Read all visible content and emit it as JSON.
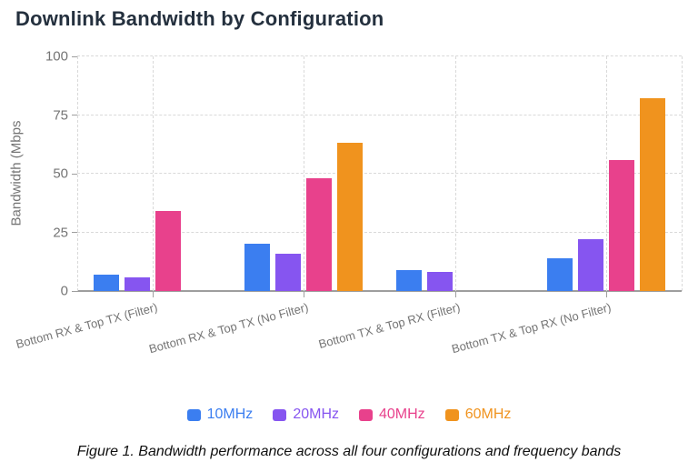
{
  "page": {
    "title": "Downlink Bandwidth by Configuration",
    "caption": "Figure 1. Bandwidth performance across all four configurations and frequency bands"
  },
  "chart_data": {
    "type": "bar",
    "title": "Downlink Bandwidth by Configuration",
    "xlabel": "",
    "ylabel": "Bandwidth (Mbps",
    "ylim": [
      0,
      100
    ],
    "yticks": [
      0,
      25,
      50,
      75,
      100
    ],
    "grid": "dashed horizontal gridlines at yticks, dashed vertical lines at category centers and plot left/right edges",
    "legend_position": "bottom center",
    "categories": [
      "Bottom RX & Top TX (Filter)",
      "Bottom RX & Top TX (No Filter)",
      "Bottom TX & Top RX (Filter)",
      "Bottom TX & Top RX (No Filter)"
    ],
    "series": [
      {
        "name": "10MHz",
        "color": "#3b7ef0",
        "values": [
          7,
          20,
          9,
          14
        ]
      },
      {
        "name": "20MHz",
        "color": "#8655f0",
        "values": [
          6,
          16,
          8,
          22
        ]
      },
      {
        "name": "40MHz",
        "color": "#e8418c",
        "values": [
          34,
          48,
          0,
          56
        ]
      },
      {
        "name": "60MHz",
        "color": "#f0931e",
        "values": [
          0,
          63,
          0,
          82
        ]
      }
    ]
  },
  "colors": {
    "title_text": "#24303e",
    "axis_text": "#757575",
    "grid_line": "#d9d9d9",
    "axis_line": "#9e9e9e"
  }
}
